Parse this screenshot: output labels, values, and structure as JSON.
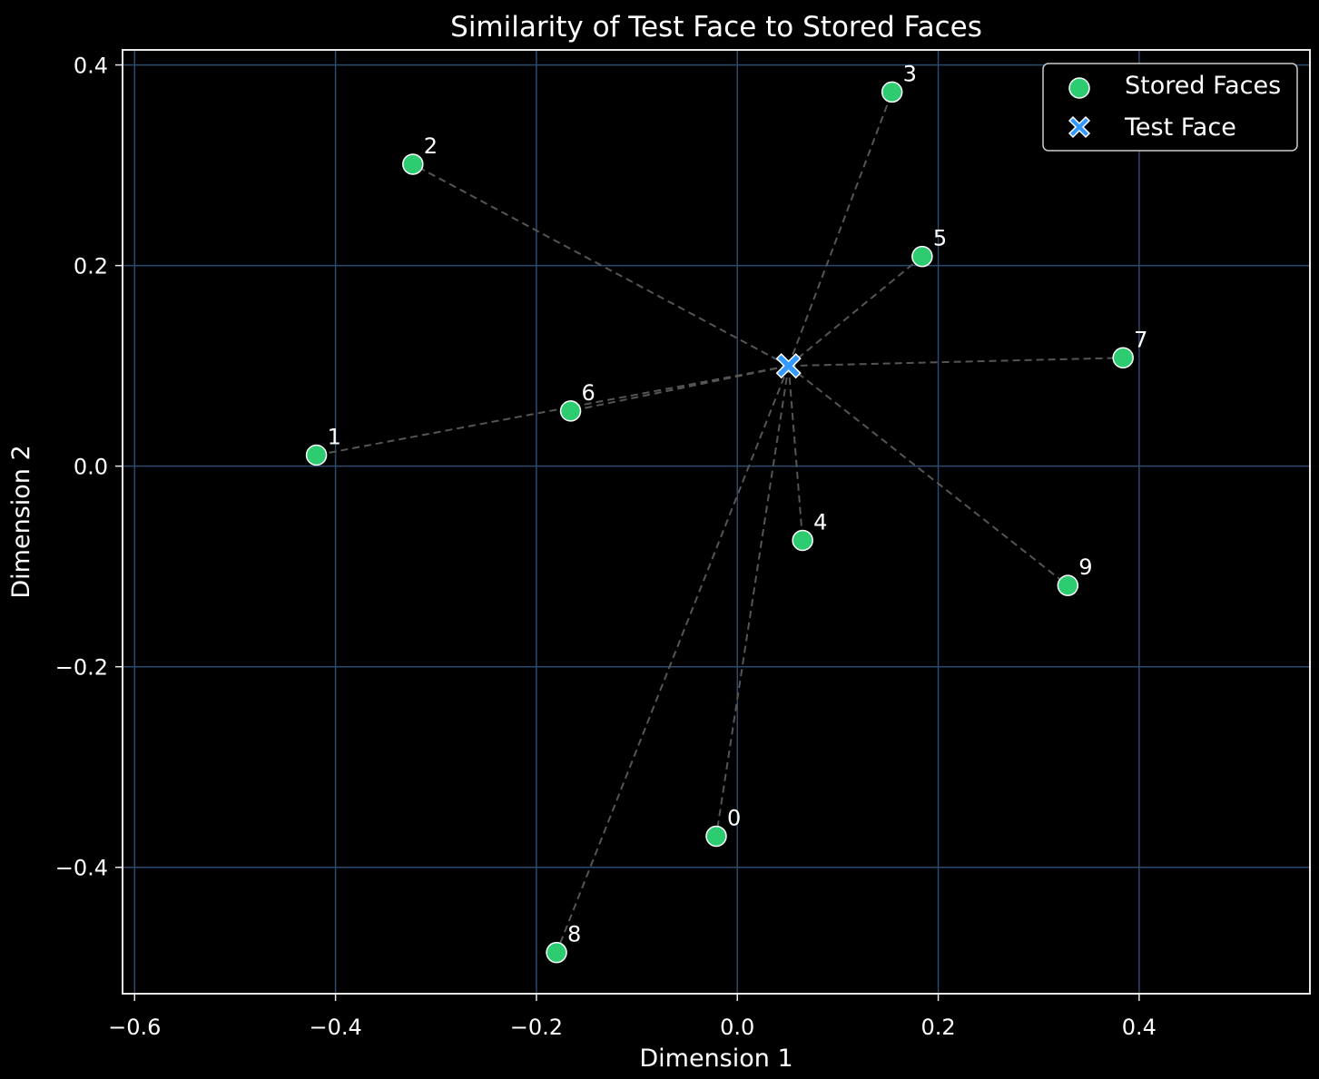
{
  "chart_data": {
    "type": "scatter",
    "title": "Similarity of Test Face to Stored Faces",
    "xlabel": "Dimension 1",
    "ylabel": "Dimension 2",
    "xlim": [
      -0.612,
      0.57
    ],
    "ylim": [
      -0.526,
      0.415
    ],
    "xticks": [
      -0.6,
      -0.4,
      -0.2,
      0.0,
      0.2,
      0.4
    ],
    "xtick_labels": [
      "−0.6",
      "−0.4",
      "−0.2",
      "0.0",
      "0.2",
      "0.4"
    ],
    "yticks": [
      -0.4,
      -0.2,
      0.0,
      0.2,
      0.4
    ],
    "ytick_labels": [
      "−0.4",
      "−0.2",
      "0.0",
      "0.2",
      "0.4"
    ],
    "grid": true,
    "legend_position": "top-right",
    "series": [
      {
        "name": "Stored Faces",
        "marker": "circle",
        "color": "#2ecc71",
        "points": [
          {
            "label": "0",
            "x": -0.021,
            "y": -0.369
          },
          {
            "label": "1",
            "x": -0.419,
            "y": 0.011
          },
          {
            "label": "2",
            "x": -0.323,
            "y": 0.301
          },
          {
            "label": "3",
            "x": 0.154,
            "y": 0.373
          },
          {
            "label": "4",
            "x": 0.065,
            "y": -0.074
          },
          {
            "label": "5",
            "x": 0.184,
            "y": 0.209
          },
          {
            "label": "6",
            "x": -0.166,
            "y": 0.055
          },
          {
            "label": "7",
            "x": 0.384,
            "y": 0.108
          },
          {
            "label": "8",
            "x": -0.18,
            "y": -0.485
          },
          {
            "label": "9",
            "x": 0.329,
            "y": -0.119
          }
        ]
      },
      {
        "name": "Test Face",
        "marker": "x",
        "color": "#3399ff",
        "points": [
          {
            "label": "",
            "x": 0.051,
            "y": 0.1
          }
        ]
      }
    ],
    "connectors": "dashed lines from the Test Face to each Stored Face"
  },
  "colors": {
    "background": "#000000",
    "grid": "#2a4a6e",
    "axes_frame": "#e8e8e8",
    "connector": "#555555",
    "text": "#ffffff"
  }
}
